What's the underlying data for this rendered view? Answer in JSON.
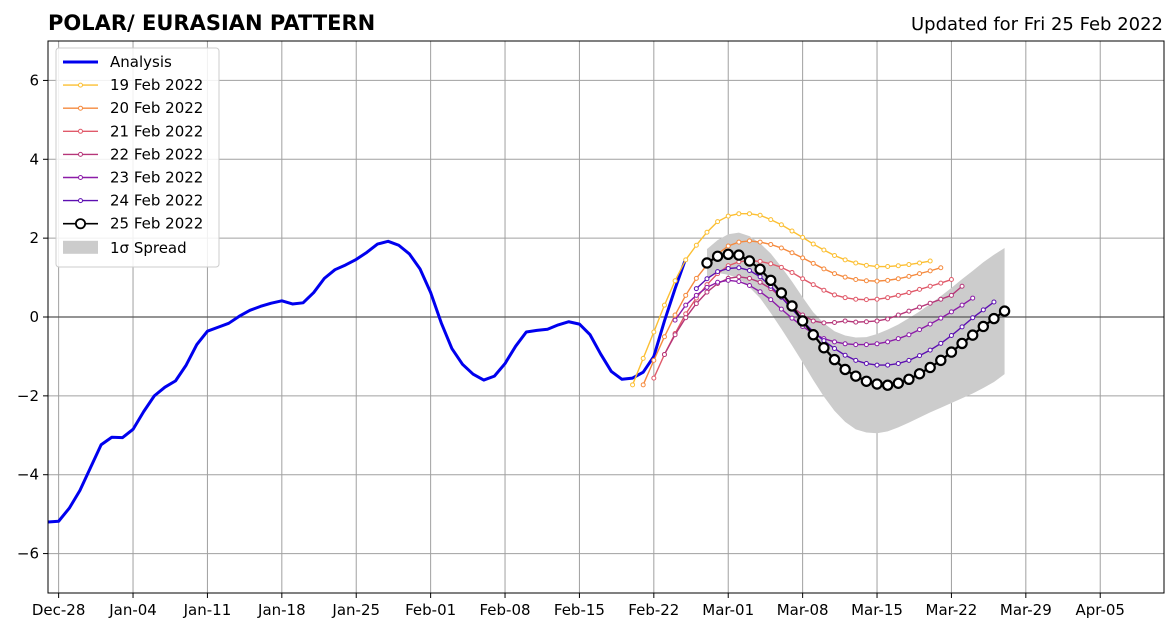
{
  "chart_data": {
    "type": "line",
    "title": "POLAR/ EURASIAN  PATTERN",
    "subtitle": "Updated for Fri 25 Feb 2022",
    "xlabel": "",
    "ylabel": "",
    "x_axis_type": "date",
    "xlim": [
      "2021-12-27",
      "2022-04-11"
    ],
    "ylim": [
      -7,
      7
    ],
    "x_ticks": [
      "2021-12-28",
      "2022-01-04",
      "2022-01-11",
      "2022-01-18",
      "2022-01-25",
      "2022-02-01",
      "2022-02-08",
      "2022-02-15",
      "2022-02-22",
      "2022-03-01",
      "2022-03-08",
      "2022-03-15",
      "2022-03-22",
      "2022-03-29",
      "2022-04-05"
    ],
    "x_tick_labels": [
      "Dec-28",
      "Jan-04",
      "Jan-11",
      "Jan-18",
      "Jan-25",
      "Feb-01",
      "Feb-08",
      "Feb-15",
      "Feb-22",
      "Mar-01",
      "Mar-08",
      "Mar-15",
      "Mar-22",
      "Mar-29",
      "Apr-05"
    ],
    "y_ticks": [
      -6,
      -4,
      -2,
      0,
      2,
      4,
      6
    ],
    "y_tick_labels": [
      "−6",
      "−4",
      "−2",
      "0",
      "2",
      "4",
      "6"
    ],
    "grid": true,
    "legend_position": "top-left",
    "series": [
      {
        "name": "Analysis",
        "color": "#0000ee",
        "style": "thick-line",
        "x": [
          "2021-12-27",
          "2021-12-28",
          "2021-12-29",
          "2021-12-30",
          "2021-12-31",
          "2022-01-01",
          "2022-01-02",
          "2022-01-03",
          "2022-01-04",
          "2022-01-05",
          "2022-01-06",
          "2022-01-07",
          "2022-01-08",
          "2022-01-09",
          "2022-01-10",
          "2022-01-11",
          "2022-01-12",
          "2022-01-13",
          "2022-01-14",
          "2022-01-15",
          "2022-01-16",
          "2022-01-17",
          "2022-01-18",
          "2022-01-19",
          "2022-01-20",
          "2022-01-21",
          "2022-01-22",
          "2022-01-23",
          "2022-01-24",
          "2022-01-25",
          "2022-01-26",
          "2022-01-27",
          "2022-01-28",
          "2022-01-29",
          "2022-01-30",
          "2022-01-31",
          "2022-02-01",
          "2022-02-02",
          "2022-02-03",
          "2022-02-04",
          "2022-02-05",
          "2022-02-06",
          "2022-02-07",
          "2022-02-08",
          "2022-02-09",
          "2022-02-10",
          "2022-02-11",
          "2022-02-12",
          "2022-02-13",
          "2022-02-14",
          "2022-02-15",
          "2022-02-16",
          "2022-02-17",
          "2022-02-18",
          "2022-02-19",
          "2022-02-20",
          "2022-02-21",
          "2022-02-22",
          "2022-02-23",
          "2022-02-24",
          "2022-02-25"
        ],
        "values": [
          -5.2,
          -5.18,
          -4.85,
          -4.4,
          -3.82,
          -3.24,
          -3.05,
          -3.06,
          -2.85,
          -2.4,
          -2.0,
          -1.78,
          -1.62,
          -1.22,
          -0.7,
          -0.36,
          -0.26,
          -0.16,
          0.02,
          0.17,
          0.27,
          0.35,
          0.41,
          0.33,
          0.36,
          0.62,
          0.98,
          1.2,
          1.32,
          1.46,
          1.64,
          1.85,
          1.92,
          1.82,
          1.6,
          1.22,
          0.62,
          -0.15,
          -0.8,
          -1.2,
          -1.45,
          -1.6,
          -1.5,
          -1.18,
          -0.74,
          -0.38,
          -0.34,
          -0.31,
          -0.2,
          -0.12,
          -0.18,
          -0.45,
          -0.94,
          -1.38,
          -1.58,
          -1.55,
          -1.4,
          -1.0,
          -0.1,
          0.72,
          1.48
        ]
      },
      {
        "name": "19 Feb 2022",
        "color": "#fcbf32",
        "style": "line-dots",
        "x": [
          "2022-02-20",
          "2022-02-21",
          "2022-02-22",
          "2022-02-23",
          "2022-02-24",
          "2022-02-25",
          "2022-02-26",
          "2022-02-27",
          "2022-02-28",
          "2022-03-01",
          "2022-03-02",
          "2022-03-03",
          "2022-03-04",
          "2022-03-05",
          "2022-03-06",
          "2022-03-07",
          "2022-03-08",
          "2022-03-09",
          "2022-03-10",
          "2022-03-11",
          "2022-03-12",
          "2022-03-13",
          "2022-03-14",
          "2022-03-15",
          "2022-03-16",
          "2022-03-17",
          "2022-03-18",
          "2022-03-19",
          "2022-03-20"
        ],
        "values": [
          -1.72,
          -1.05,
          -0.38,
          0.3,
          0.92,
          1.45,
          1.82,
          2.15,
          2.42,
          2.56,
          2.62,
          2.62,
          2.58,
          2.47,
          2.34,
          2.18,
          2.02,
          1.85,
          1.7,
          1.56,
          1.45,
          1.37,
          1.31,
          1.28,
          1.28,
          1.3,
          1.33,
          1.37,
          1.42
        ]
      },
      {
        "name": "20 Feb 2022",
        "color": "#f58a3e",
        "style": "line-dots",
        "x": [
          "2022-02-21",
          "2022-02-22",
          "2022-02-23",
          "2022-02-24",
          "2022-02-25",
          "2022-02-26",
          "2022-02-27",
          "2022-02-28",
          "2022-03-01",
          "2022-03-02",
          "2022-03-03",
          "2022-03-04",
          "2022-03-05",
          "2022-03-06",
          "2022-03-07",
          "2022-03-08",
          "2022-03-09",
          "2022-03-10",
          "2022-03-11",
          "2022-03-12",
          "2022-03-13",
          "2022-03-14",
          "2022-03-15",
          "2022-03-16",
          "2022-03-17",
          "2022-03-18",
          "2022-03-19",
          "2022-03-20",
          "2022-03-21"
        ],
        "values": [
          -1.72,
          -1.1,
          -0.5,
          0.05,
          0.55,
          0.98,
          1.32,
          1.6,
          1.8,
          1.9,
          1.93,
          1.9,
          1.84,
          1.75,
          1.63,
          1.5,
          1.36,
          1.22,
          1.1,
          1.01,
          0.95,
          0.92,
          0.91,
          0.93,
          0.97,
          1.03,
          1.1,
          1.17,
          1.25
        ]
      },
      {
        "name": "21 Feb 2022",
        "color": "#e05a6a",
        "style": "line-dots",
        "x": [
          "2022-02-22",
          "2022-02-23",
          "2022-02-24",
          "2022-02-25",
          "2022-02-26",
          "2022-02-27",
          "2022-02-28",
          "2022-03-01",
          "2022-03-02",
          "2022-03-03",
          "2022-03-04",
          "2022-03-05",
          "2022-03-06",
          "2022-03-07",
          "2022-03-08",
          "2022-03-09",
          "2022-03-10",
          "2022-03-11",
          "2022-03-12",
          "2022-03-13",
          "2022-03-14",
          "2022-03-15",
          "2022-03-16",
          "2022-03-17",
          "2022-03-18",
          "2022-03-19",
          "2022-03-20",
          "2022-03-21",
          "2022-03-22"
        ],
        "values": [
          -1.55,
          -0.95,
          -0.42,
          0.08,
          0.48,
          0.82,
          1.1,
          1.3,
          1.4,
          1.43,
          1.41,
          1.35,
          1.26,
          1.13,
          0.97,
          0.82,
          0.68,
          0.56,
          0.49,
          0.45,
          0.44,
          0.45,
          0.49,
          0.55,
          0.62,
          0.7,
          0.78,
          0.86,
          0.95
        ]
      },
      {
        "name": "22 Feb 2022",
        "color": "#b63679",
        "style": "line-dots",
        "x": [
          "2022-02-23",
          "2022-02-24",
          "2022-02-25",
          "2022-02-26",
          "2022-02-27",
          "2022-02-28",
          "2022-03-01",
          "2022-03-02",
          "2022-03-03",
          "2022-03-04",
          "2022-03-05",
          "2022-03-06",
          "2022-03-07",
          "2022-03-08",
          "2022-03-09",
          "2022-03-10",
          "2022-03-11",
          "2022-03-12",
          "2022-03-13",
          "2022-03-14",
          "2022-03-15",
          "2022-03-16",
          "2022-03-17",
          "2022-03-18",
          "2022-03-19",
          "2022-03-20",
          "2022-03-21",
          "2022-03-22",
          "2022-03-23"
        ],
        "values": [
          -0.95,
          -0.45,
          -0.02,
          0.34,
          0.63,
          0.85,
          0.98,
          1.02,
          0.98,
          0.88,
          0.72,
          0.5,
          0.26,
          0.05,
          -0.1,
          -0.15,
          -0.14,
          -0.1,
          -0.13,
          -0.12,
          -0.1,
          -0.05,
          0.05,
          0.15,
          0.25,
          0.35,
          0.45,
          0.55,
          0.78
        ]
      },
      {
        "name": "23 Feb 2022",
        "color": "#8c1ca8",
        "style": "line-dots",
        "x": [
          "2022-02-24",
          "2022-02-25",
          "2022-02-26",
          "2022-02-27",
          "2022-02-28",
          "2022-03-01",
          "2022-03-02",
          "2022-03-03",
          "2022-03-04",
          "2022-03-05",
          "2022-03-06",
          "2022-03-07",
          "2022-03-08",
          "2022-03-09",
          "2022-03-10",
          "2022-03-11",
          "2022-03-12",
          "2022-03-13",
          "2022-03-14",
          "2022-03-15",
          "2022-03-16",
          "2022-03-17",
          "2022-03-18",
          "2022-03-19",
          "2022-03-20",
          "2022-03-21",
          "2022-03-22",
          "2022-03-23",
          "2022-03-24"
        ],
        "values": [
          -0.08,
          0.3,
          0.55,
          0.75,
          0.88,
          0.93,
          0.9,
          0.8,
          0.64,
          0.44,
          0.2,
          -0.03,
          -0.24,
          -0.42,
          -0.55,
          -0.63,
          -0.68,
          -0.7,
          -0.7,
          -0.68,
          -0.63,
          -0.55,
          -0.45,
          -0.32,
          -0.18,
          -0.03,
          0.13,
          0.3,
          0.48
        ]
      },
      {
        "name": "24 Feb 2022",
        "color": "#5c0fb1",
        "style": "line-dots",
        "x": [
          "2022-02-26",
          "2022-02-27",
          "2022-02-28",
          "2022-03-01",
          "2022-03-02",
          "2022-03-03",
          "2022-03-04",
          "2022-03-05",
          "2022-03-06",
          "2022-03-07",
          "2022-03-08",
          "2022-03-09",
          "2022-03-10",
          "2022-03-11",
          "2022-03-12",
          "2022-03-13",
          "2022-03-14",
          "2022-03-15",
          "2022-03-16",
          "2022-03-17",
          "2022-03-18",
          "2022-03-19",
          "2022-03-20",
          "2022-03-21",
          "2022-03-22",
          "2022-03-23",
          "2022-03-24",
          "2022-03-25",
          "2022-03-26"
        ],
        "values": [
          0.72,
          0.97,
          1.15,
          1.23,
          1.25,
          1.18,
          1.02,
          0.78,
          0.5,
          0.2,
          -0.1,
          -0.37,
          -0.6,
          -0.8,
          -0.97,
          -1.1,
          -1.18,
          -1.22,
          -1.22,
          -1.18,
          -1.1,
          -0.98,
          -0.84,
          -0.67,
          -0.47,
          -0.25,
          -0.02,
          0.18,
          0.38
        ]
      },
      {
        "name": "25 Feb 2022",
        "color": "#000000",
        "style": "line-circles",
        "x": [
          "2022-02-27",
          "2022-02-28",
          "2022-03-01",
          "2022-03-02",
          "2022-03-03",
          "2022-03-04",
          "2022-03-05",
          "2022-03-06",
          "2022-03-07",
          "2022-03-08",
          "2022-03-09",
          "2022-03-10",
          "2022-03-11",
          "2022-03-12",
          "2022-03-13",
          "2022-03-14",
          "2022-03-15",
          "2022-03-16",
          "2022-03-17",
          "2022-03-18",
          "2022-03-19",
          "2022-03-20",
          "2022-03-21",
          "2022-03-22",
          "2022-03-23",
          "2022-03-24",
          "2022-03-25",
          "2022-03-26",
          "2022-03-27"
        ],
        "values": [
          1.37,
          1.54,
          1.59,
          1.57,
          1.42,
          1.21,
          0.93,
          0.61,
          0.28,
          -0.1,
          -0.45,
          -0.78,
          -1.08,
          -1.33,
          -1.5,
          -1.63,
          -1.7,
          -1.73,
          -1.68,
          -1.58,
          -1.44,
          -1.28,
          -1.1,
          -0.89,
          -0.67,
          -0.46,
          -0.24,
          -0.04,
          0.15
        ]
      }
    ],
    "spread": {
      "name": "1σ Spread",
      "color": "#cccccc",
      "x": [
        "2022-02-27",
        "2022-02-28",
        "2022-03-01",
        "2022-03-02",
        "2022-03-03",
        "2022-03-04",
        "2022-03-05",
        "2022-03-06",
        "2022-03-07",
        "2022-03-08",
        "2022-03-09",
        "2022-03-10",
        "2022-03-11",
        "2022-03-12",
        "2022-03-13",
        "2022-03-14",
        "2022-03-15",
        "2022-03-16",
        "2022-03-17",
        "2022-03-18",
        "2022-03-19",
        "2022-03-20",
        "2022-03-21",
        "2022-03-22",
        "2022-03-23",
        "2022-03-24",
        "2022-03-25",
        "2022-03-26",
        "2022-03-27"
      ],
      "upper": [
        1.72,
        1.95,
        2.1,
        2.14,
        2.05,
        1.87,
        1.61,
        1.27,
        0.9,
        0.5,
        0.12,
        -0.16,
        -0.36,
        -0.47,
        -0.52,
        -0.51,
        -0.43,
        -0.32,
        -0.19,
        -0.03,
        0.14,
        0.33,
        0.53,
        0.74,
        0.96,
        1.17,
        1.39,
        1.58,
        1.75
      ],
      "lower": [
        1.0,
        1.12,
        1.07,
        0.98,
        0.75,
        0.48,
        0.1,
        -0.3,
        -0.72,
        -1.15,
        -1.6,
        -2.02,
        -2.38,
        -2.66,
        -2.85,
        -2.93,
        -2.95,
        -2.9,
        -2.8,
        -2.68,
        -2.55,
        -2.42,
        -2.3,
        -2.18,
        -2.06,
        -1.94,
        -1.8,
        -1.65,
        -1.45
      ]
    }
  }
}
